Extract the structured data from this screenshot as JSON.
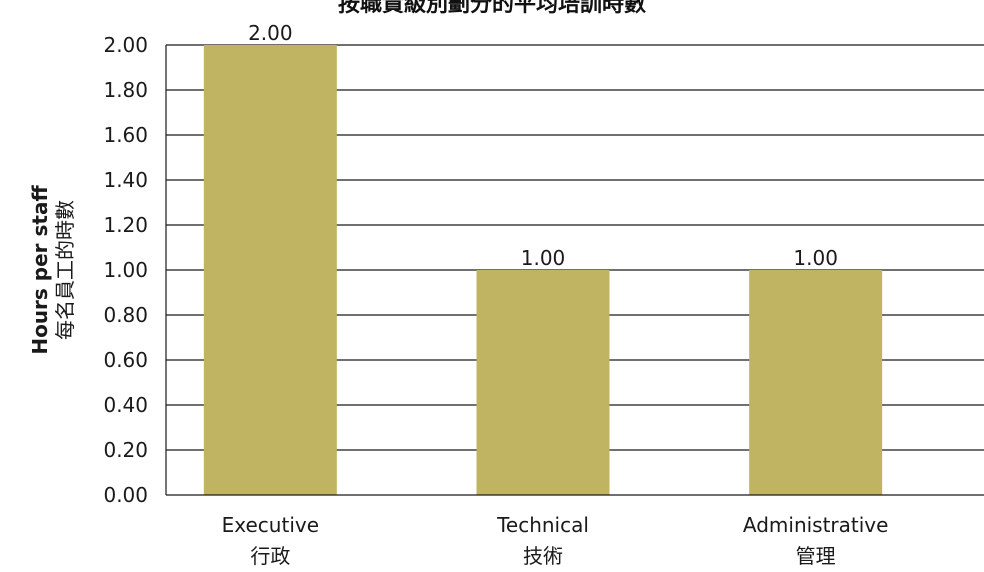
{
  "chart_data": {
    "type": "bar",
    "title": "按職責級別劃分的平均培訓時數",
    "ylabel_en": "Hours per staff",
    "ylabel_zh": "每名員工的時數",
    "categories": [
      {
        "en": "Executive",
        "zh": "行政"
      },
      {
        "en": "Technical",
        "zh": "技術"
      },
      {
        "en": "Administrative",
        "zh": "管理"
      }
    ],
    "values": [
      2.0,
      1.0,
      1.0
    ],
    "data_labels": [
      "2.00",
      "1.00",
      "1.00"
    ],
    "y_ticks": [
      "0.00",
      "0.20",
      "0.40",
      "0.60",
      "0.80",
      "1.00",
      "1.20",
      "1.40",
      "1.60",
      "1.80",
      "2.00"
    ],
    "ylim": [
      0,
      2
    ],
    "grid": true,
    "bar_color": "#c0b463"
  }
}
